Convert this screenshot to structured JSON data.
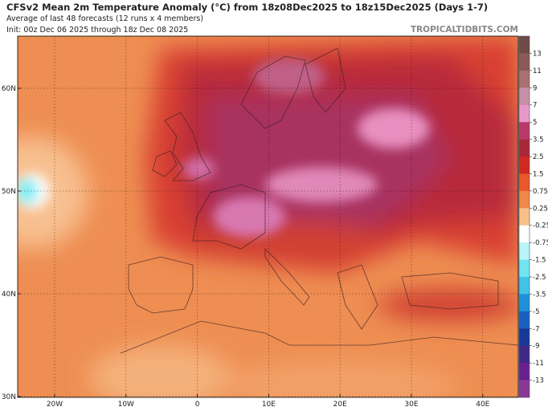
{
  "header": {
    "title": "CFSv2 Mean 2m Temperature Anomaly (°C) from 18z08Dec2025 to 18z15Dec2025 (Days 1-7)",
    "subtitle": "Average of last 48 forecasts (12 runs x 4 members)",
    "init": "Init: 00z Dec 06 2025 through 18z Dec 08 2025",
    "brand": "TROPICALTIDBITS.COM"
  },
  "map": {
    "lat_labels": [
      "60N",
      "50N",
      "40N",
      "30N"
    ],
    "lon_labels": [
      "20W",
      "10W",
      "0",
      "10E",
      "20E",
      "30E",
      "40E"
    ]
  },
  "colorbar": {
    "labels": [
      "13",
      "11",
      "9",
      "7",
      "5",
      "3.5",
      "2.5",
      "1.5",
      "0.75",
      "0.25",
      "-0.25",
      "-0.75",
      "-1.5",
      "-2.5",
      "-3.5",
      "-5",
      "-7",
      "-9",
      "-11",
      "-13"
    ],
    "colors": [
      "#6e4a48",
      "#8a5a5a",
      "#a87070",
      "#c890a8",
      "#e898c8",
      "#b83a6a",
      "#a82838",
      "#d02a20",
      "#e85828",
      "#f08848",
      "#f8c088",
      "#ffffff",
      "#b8f4f8",
      "#70e4f0",
      "#40c4e8",
      "#2090d8",
      "#1860c0",
      "#183898",
      "#402888",
      "#6a2090",
      "#8a3898"
    ]
  }
}
